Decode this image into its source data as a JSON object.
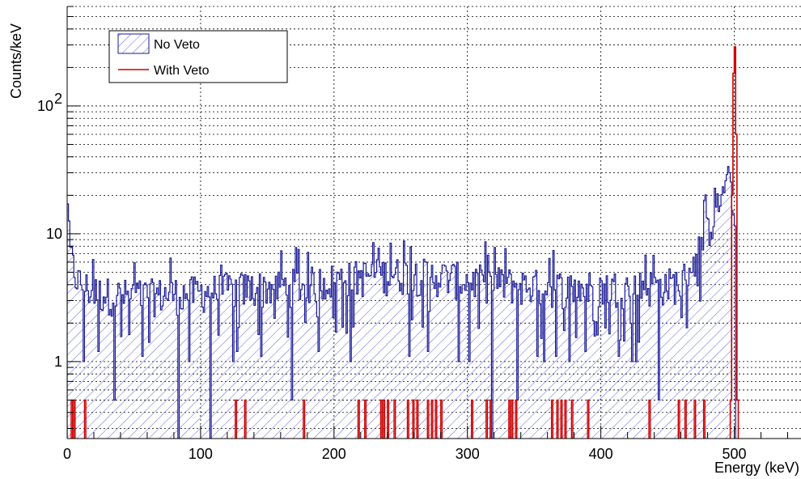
{
  "chart_data": {
    "type": "histogram",
    "xlabel": "Energy (keV)",
    "ylabel": "Counts/keV",
    "xlim": [
      0,
      550
    ],
    "ylim": [
      0.25,
      600
    ],
    "y_scale": "log",
    "grid": true,
    "legend_position": "top-left",
    "x_ticks": [
      "0",
      "100",
      "200",
      "300",
      "400",
      "500"
    ],
    "x_tick_values": [
      0,
      100,
      200,
      300,
      400,
      500
    ],
    "y_ticks": [
      "1",
      "10",
      "10"
    ],
    "y_tick_exponent": "2",
    "y_tick_values": [
      1,
      10,
      100
    ],
    "series": [
      {
        "name": "No Veto",
        "color": "#1a1a96",
        "fill": "hatched",
        "bin_width_keV": 1,
        "profile": [
          [
            0,
            22
          ],
          [
            1,
            15
          ],
          [
            2,
            8
          ],
          [
            4,
            6
          ],
          [
            6,
            5
          ],
          [
            8,
            4.5
          ],
          [
            10,
            4.2
          ],
          [
            20,
            3.6
          ],
          [
            40,
            3.4
          ],
          [
            60,
            3.4
          ],
          [
            80,
            3.5
          ],
          [
            100,
            3.6
          ],
          [
            120,
            3.8
          ],
          [
            140,
            3.9
          ],
          [
            160,
            4.0
          ],
          [
            180,
            4.2
          ],
          [
            200,
            4.5
          ],
          [
            220,
            4.8
          ],
          [
            240,
            5.0
          ],
          [
            260,
            5.0
          ],
          [
            280,
            4.8
          ],
          [
            300,
            4.5
          ],
          [
            320,
            4.3
          ],
          [
            340,
            4.1
          ],
          [
            360,
            4.0
          ],
          [
            380,
            3.9
          ],
          [
            400,
            3.9
          ],
          [
            420,
            4.0
          ],
          [
            440,
            4.0
          ],
          [
            460,
            4.3
          ],
          [
            465,
            5
          ],
          [
            470,
            6.5
          ],
          [
            475,
            8.5
          ],
          [
            480,
            11
          ],
          [
            485,
            14
          ],
          [
            490,
            19
          ],
          [
            493,
            24
          ],
          [
            495,
            28
          ],
          [
            496,
            31
          ],
          [
            497,
            27
          ],
          [
            498,
            20
          ],
          [
            499,
            15
          ],
          [
            500,
            12
          ]
        ],
        "dips": [
          [
            35,
            0.5
          ],
          [
            83,
            0.25
          ],
          [
            107,
            0.25
          ],
          [
            168,
            0.5
          ],
          [
            318,
            0.25
          ],
          [
            337,
            0.5
          ],
          [
            443,
            0.5
          ],
          [
            12,
            1.0
          ],
          [
            23,
            1.2
          ],
          [
            56,
            1.1
          ],
          [
            91,
            1.0
          ],
          [
            124,
            1.0
          ],
          [
            127,
            1.2
          ],
          [
            145,
            1.1
          ],
          [
            188,
            1.2
          ],
          [
            212,
            1.0
          ],
          [
            256,
            1.1
          ],
          [
            270,
            1.2
          ],
          [
            293,
            1.0
          ],
          [
            301,
            1.0
          ],
          [
            352,
            1.1
          ],
          [
            357,
            1.0
          ],
          [
            366,
            1.1
          ],
          [
            376,
            1.0
          ],
          [
            388,
            1.2
          ],
          [
            413,
            1.1
          ],
          [
            423,
            1.0
          ],
          [
            426,
            1.0
          ]
        ]
      },
      {
        "name": "With Veto",
        "color": "#cc0000",
        "fill": "none",
        "single_count_value": 0.5,
        "single_count_bins": [
          3,
          5,
          13,
          126,
          133,
          177,
          218,
          223,
          235,
          237,
          240,
          245,
          255,
          259,
          262,
          270,
          273,
          276,
          280,
          303,
          314,
          317,
          331,
          333,
          336,
          363,
          367,
          370,
          373,
          378,
          390,
          436,
          458,
          463,
          470,
          477
        ],
        "peak": [
          [
            497,
            0.5
          ],
          [
            498,
            20
          ],
          [
            499,
            180
          ],
          [
            500,
            290
          ],
          [
            501,
            60
          ],
          [
            502,
            0.5
          ]
        ]
      }
    ]
  },
  "legend": {
    "entries": [
      {
        "label": "No Veto"
      },
      {
        "label": "With Veto"
      }
    ]
  }
}
